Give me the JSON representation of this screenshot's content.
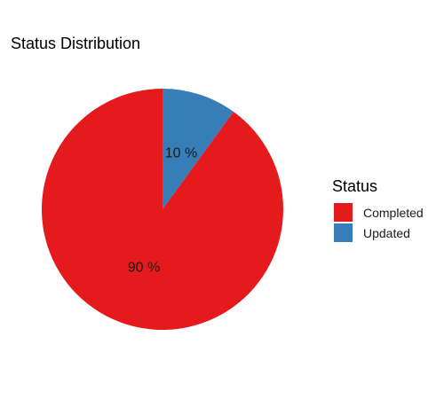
{
  "chart_data": {
    "type": "pie",
    "title": "Status Distribution",
    "legend_title": "Status",
    "legend_position": "right",
    "slices": [
      {
        "label": "Completed",
        "value": 90,
        "display": "90 %",
        "color": "#E41A1C"
      },
      {
        "label": "Updated",
        "value": 10,
        "display": "10 %",
        "color": "#377EB8"
      }
    ]
  }
}
